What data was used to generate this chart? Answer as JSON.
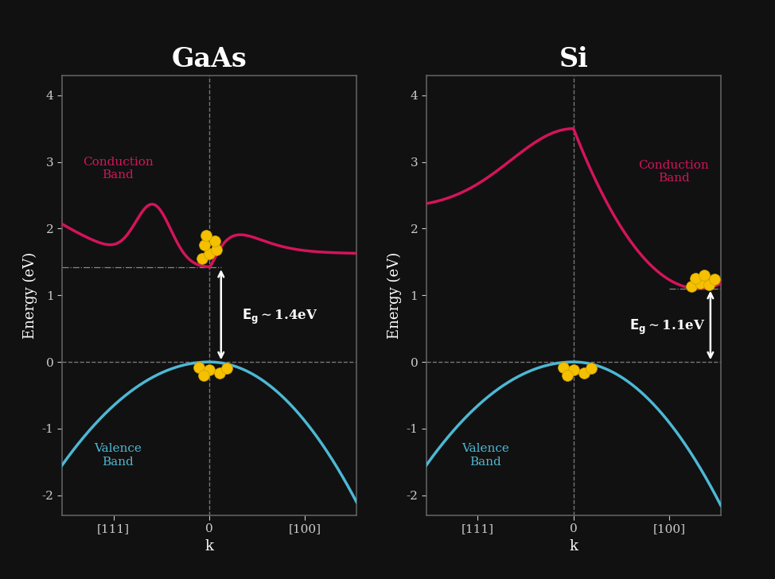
{
  "background_color": "#111111",
  "axes_bg_color": "#111111",
  "line_color_conduction": "#d4145a",
  "line_color_valence": "#4db8d4",
  "text_color": "#ffffff",
  "dot_color": "#f5c000",
  "title_GaAs": "GaAs",
  "title_Si": "Si",
  "xlabel": "k",
  "ylabel": "Energy (eV)",
  "ylim": [
    -2.3,
    4.3
  ],
  "xlim": [
    -1.0,
    1.0
  ],
  "yticks": [
    -2,
    -1,
    0,
    1,
    2,
    3,
    4
  ],
  "xtick_positions": [
    -0.65,
    0,
    0.65
  ],
  "xtick_labels": [
    "[111]",
    "0",
    "[100]"
  ],
  "GaAs_cbm_e": 1.42,
  "Si_cbm_e": 1.1,
  "Si_cbm_k": 0.85
}
